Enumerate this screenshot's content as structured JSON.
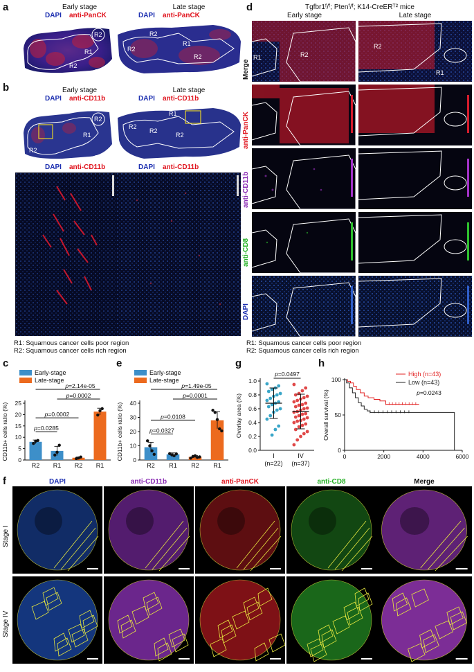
{
  "panel_a": {
    "label": "a",
    "early_header": "Early stage",
    "late_header": "Late stage",
    "stain_dapi": "DAPI",
    "stain_marker": "anti-PanCK",
    "early_regions": [
      "R2",
      "R1",
      "R2"
    ],
    "late_regions": [
      "R2",
      "R1",
      "R2",
      "R2"
    ]
  },
  "panel_b": {
    "label": "b",
    "early_header": "Early stage",
    "late_header": "Late stage",
    "stain_dapi": "DAPI",
    "stain_marker": "anti-CD11b",
    "early_regions": [
      "R2",
      "R1",
      "R2"
    ],
    "late_regions": [
      "R1",
      "R2",
      "R2",
      "R2"
    ],
    "zoom_stain_dapi": "DAPI",
    "zoom_stain_marker": "anti-CD11b",
    "legend_r1": "R1: Squamous cancer cells poor region",
    "legend_r2": "R2: Squamous cancer cells rich region"
  },
  "panel_d": {
    "label": "d",
    "title": "Tgfbr1ᶠ/ᶠ; Ptenᶠ/ᶠ; K14-CreERᵀ² mice",
    "early_header": "Early stage",
    "late_header": "Late stage",
    "rows": [
      "Merge",
      "anti-PanCK",
      "anti-CD11b",
      "anti-CD8",
      "DAPI"
    ],
    "merge_regions": [
      "R1",
      "R2",
      "R2",
      "R1"
    ],
    "legend_r1": "R1: Squamous cancer cells poor region",
    "legend_r2": "R2: Squamous cancer cells rich region"
  },
  "panel_c": {
    "label": "c",
    "legend": [
      "Early-stage",
      "Late-stage"
    ],
    "pvals": [
      "p=2.14e-05",
      "p=0.0002",
      "p=0.0002",
      "p=0.0285"
    ]
  },
  "panel_e": {
    "label": "e",
    "legend": [
      "Early-stage",
      "Late-stage"
    ],
    "pvals": [
      "p=1.49e-05",
      "p=0.0001",
      "p=0.0108",
      "p=0.0327"
    ]
  },
  "panel_g": {
    "label": "g",
    "pvals": [
      "p=0.0497"
    ]
  },
  "panel_h": {
    "label": "h",
    "legend": [
      "High (n=43)",
      "Low (n=43)"
    ],
    "pvals": [
      "p=0.0243"
    ]
  },
  "panel_f": {
    "label": "f",
    "columns": [
      "DAPI",
      "anti-CD11b",
      "anti-PanCK",
      "anti-CD8",
      "Merge"
    ],
    "rows": [
      "Stage I",
      "Stage IV"
    ]
  },
  "colors": {
    "early": "#3d8fc9",
    "late": "#ec6a1e",
    "high": "#e22222",
    "low": "#222222",
    "g_blue": "#3aa6c8",
    "g_red": "#e04848"
  },
  "chart_data": [
    {
      "id": "c",
      "type": "bar",
      "categories": [
        "R2",
        "R1",
        "R2",
        "R1"
      ],
      "groups": [
        "Early-stage",
        "Early-stage",
        "Late-stage",
        "Late-stage"
      ],
      "values": [
        8.0,
        4.0,
        1.0,
        21.3
      ],
      "errors": [
        0.8,
        2.0,
        0.3,
        1.5
      ],
      "points": [
        [
          7.3,
          8.3,
          8.6
        ],
        [
          2.2,
          3.4,
          6.5
        ],
        [
          0.6,
          0.9,
          1.3
        ],
        [
          19.8,
          21.7,
          22.6
        ]
      ],
      "ylabel": "CD11b+ cells ratio (%)",
      "ylim": [
        0,
        25
      ],
      "yticks": [
        0,
        5,
        10,
        15,
        20,
        25
      ],
      "comparisons": [
        {
          "from": 0,
          "to": 1,
          "text": "p=0.0285"
        },
        {
          "from": 0,
          "to": 2,
          "text": "p=0.0002"
        },
        {
          "from": 1,
          "to": 3,
          "text": "p=0.0002"
        },
        {
          "from": 0,
          "to": 3,
          "text": "p=2.14e-05"
        }
      ]
    },
    {
      "id": "e",
      "type": "bar",
      "categories": [
        "R2",
        "R1",
        "R2",
        "R1"
      ],
      "groups": [
        "Early-stage",
        "Early-stage",
        "Late-stage",
        "Late-stage"
      ],
      "values": [
        9.0,
        4.0,
        2.2,
        28.0
      ],
      "errors": [
        3.5,
        1.0,
        0.9,
        6.0
      ],
      "points": [
        [
          13.5,
          10.0,
          6.5,
          4.0
        ],
        [
          4.5,
          3.6,
          3.0,
          4.3
        ],
        [
          1.3,
          2.5,
          3.0,
          1.8,
          2.2
        ],
        [
          35.0,
          33.5,
          28.5,
          22.0,
          20.5
        ]
      ],
      "ylabel": "CD11b+ cells ratio (%)",
      "ylim": [
        0,
        40
      ],
      "yticks": [
        0,
        10,
        20,
        30,
        40
      ],
      "comparisons": [
        {
          "from": 0,
          "to": 1,
          "text": "p=0.0327"
        },
        {
          "from": 0,
          "to": 2,
          "text": "p=0.0108"
        },
        {
          "from": 1,
          "to": 3,
          "text": "p=0.0001"
        },
        {
          "from": 0,
          "to": 3,
          "text": "p=1.49e-05"
        }
      ]
    },
    {
      "id": "g",
      "type": "scatter",
      "categories": [
        "I",
        "IV"
      ],
      "category_n": [
        "(n=22)",
        "(n=37)"
      ],
      "means": [
        0.68,
        0.56
      ],
      "sd": [
        0.22,
        0.25
      ],
      "points": [
        [
          0.96,
          0.93,
          0.9,
          0.88,
          0.85,
          0.82,
          0.8,
          0.78,
          0.75,
          0.72,
          0.7,
          0.68,
          0.66,
          0.63,
          0.6,
          0.58,
          0.55,
          0.5,
          0.45,
          0.35,
          0.3,
          0.22
        ],
        [
          0.95,
          0.9,
          0.86,
          0.82,
          0.8,
          0.78,
          0.76,
          0.74,
          0.72,
          0.7,
          0.68,
          0.66,
          0.65,
          0.63,
          0.61,
          0.6,
          0.58,
          0.56,
          0.55,
          0.53,
          0.52,
          0.5,
          0.48,
          0.47,
          0.45,
          0.43,
          0.42,
          0.4,
          0.38,
          0.36,
          0.34,
          0.3,
          0.27,
          0.24,
          0.2,
          0.15,
          0.08
        ]
      ],
      "ylabel": "Overlay area (%)",
      "ylim": [
        0,
        1.0
      ],
      "yticks": [
        0.0,
        0.2,
        0.4,
        0.6,
        0.8,
        1.0
      ],
      "ytick_labels": [
        "0.0",
        "0.2",
        "0.4",
        "0.6",
        "0.8",
        "1.0"
      ],
      "comparison": {
        "text": "p=0.0497"
      }
    },
    {
      "id": "h",
      "type": "line",
      "ylabel": "Overall survival (%)",
      "xlim": [
        0,
        6000
      ],
      "ylim": [
        0,
        100
      ],
      "xticks": [
        0,
        2000,
        4000,
        6000
      ],
      "yticks": [
        0,
        50,
        100
      ],
      "series": [
        {
          "name": "High (n=43)",
          "x": [
            0,
            150,
            300,
            450,
            600,
            800,
            1000,
            1200,
            1500,
            1800,
            2100,
            3800
          ],
          "y": [
            100,
            97.7,
            95.3,
            90.7,
            86,
            81.4,
            76.7,
            74.4,
            72.1,
            69.8,
            65.1,
            65.1
          ]
        },
        {
          "name": "Low (n=43)",
          "x": [
            0,
            100,
            250,
            400,
            550,
            700,
            850,
            1000,
            1150,
            1300,
            5600,
            5600
          ],
          "y": [
            100,
            95.3,
            88.4,
            81.4,
            74.4,
            67.4,
            62.8,
            58.1,
            55.8,
            53.5,
            53.5,
            0
          ]
        }
      ],
      "comparison": {
        "text": "p=0.0243"
      }
    }
  ]
}
